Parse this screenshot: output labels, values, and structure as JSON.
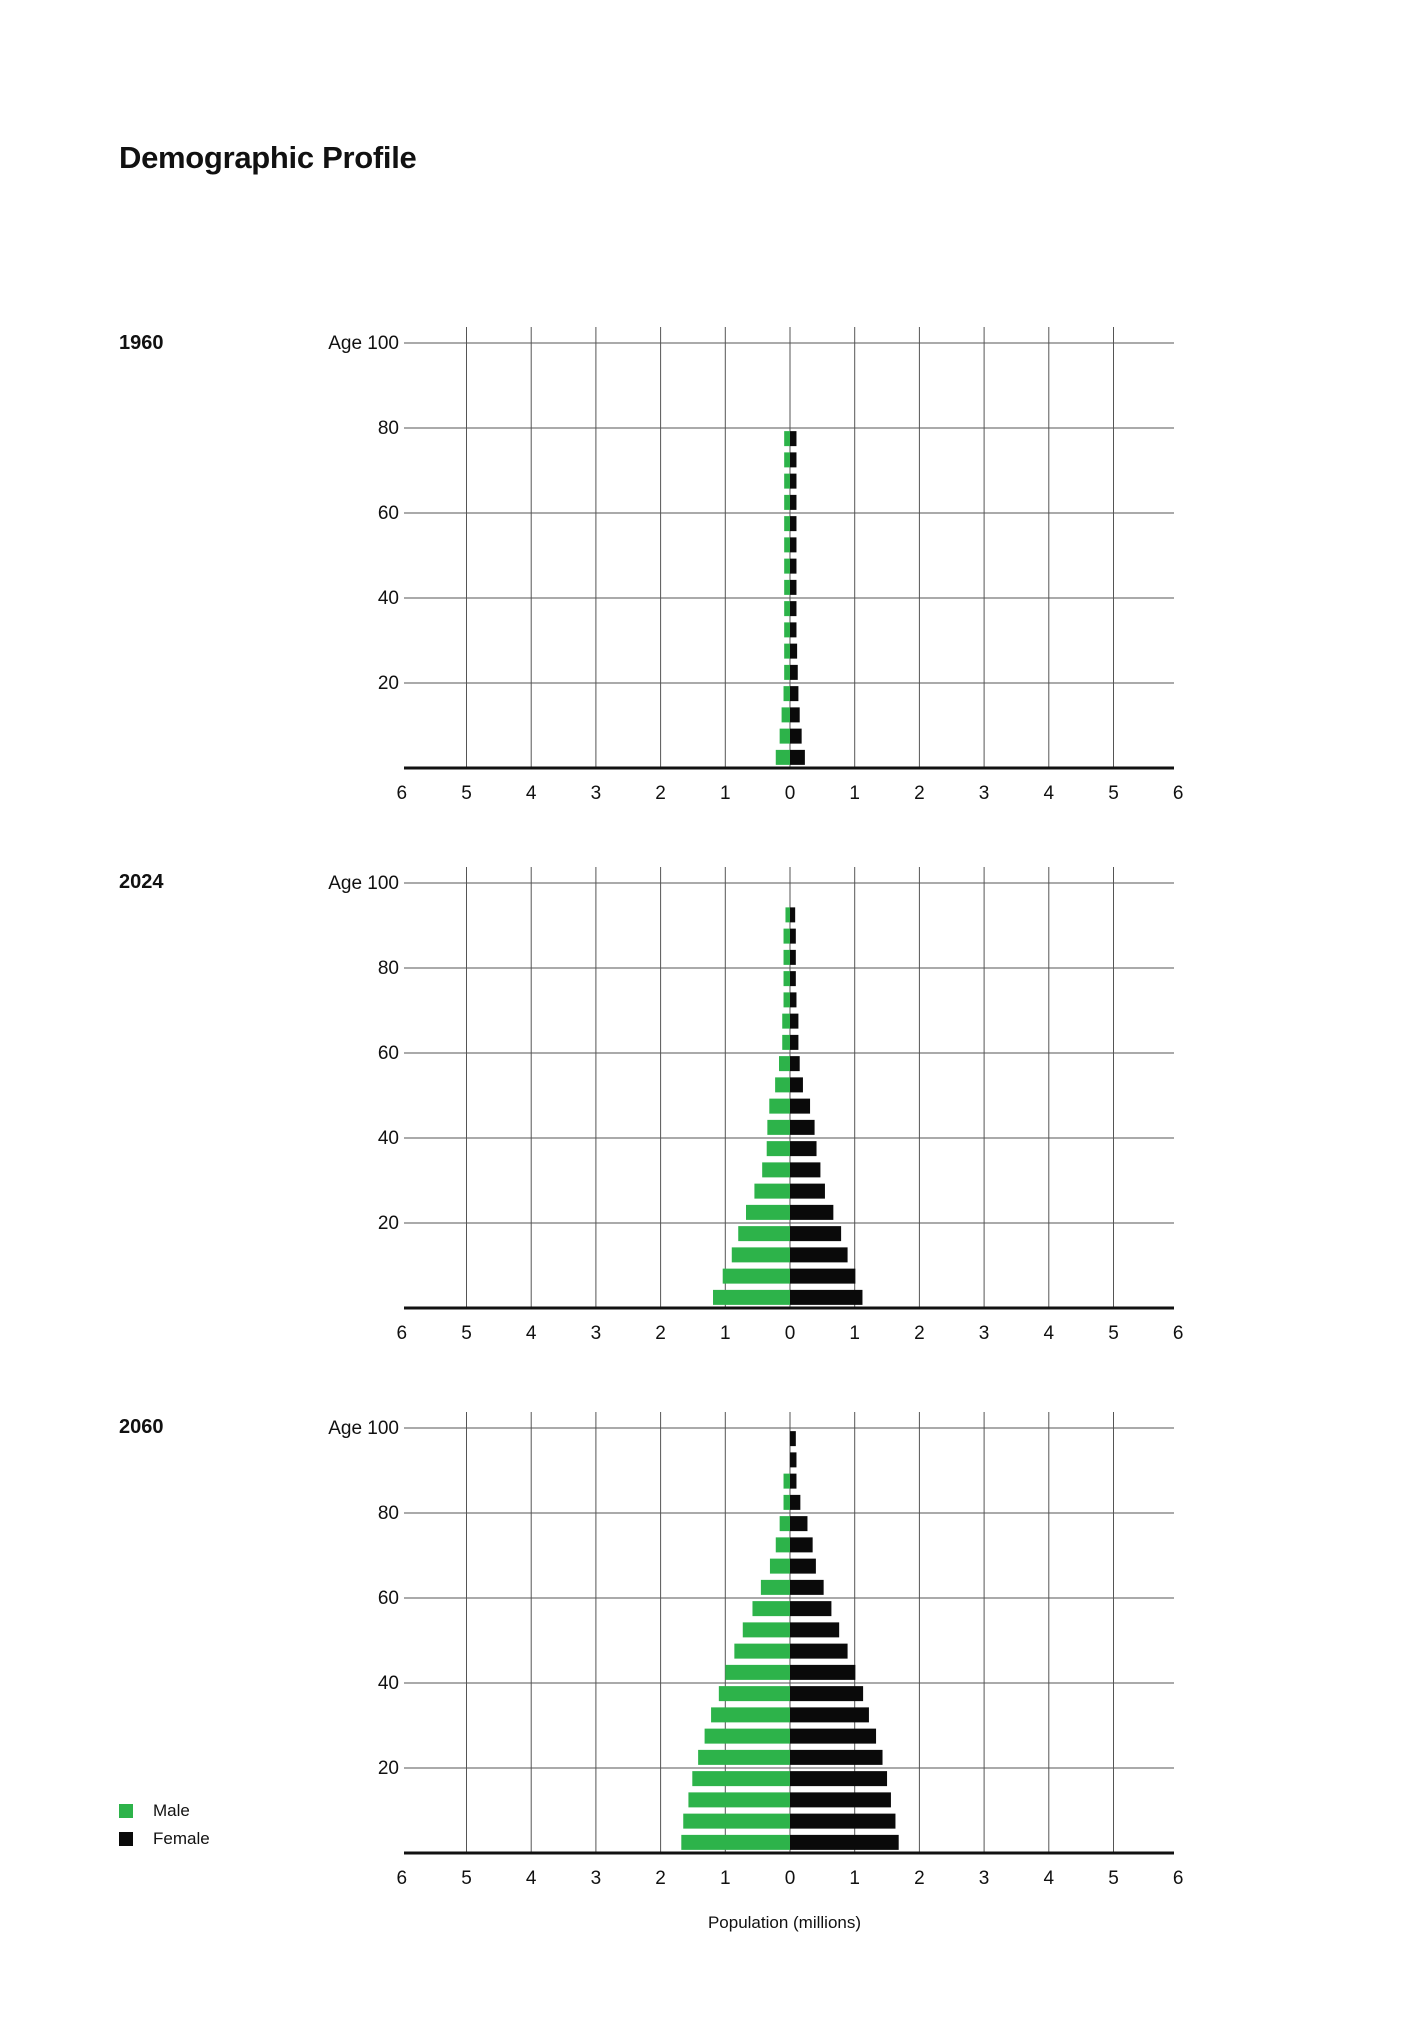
{
  "title": "Demographic Profile",
  "colors": {
    "male": "#2db34a",
    "female": "#0a0a0a",
    "grid": "#555555",
    "axis": "#111111"
  },
  "legend": {
    "male": "Male",
    "female": "Female"
  },
  "chart_data": [
    {
      "type": "bar",
      "orientation": "horizontal-pyramid",
      "year": "1960",
      "ylabel_top": "Age 100",
      "y_ticks": [
        "80",
        "60",
        "40",
        "20"
      ],
      "x_ticks": [
        "6",
        "5",
        "4",
        "3",
        "2",
        "1",
        "0",
        "1",
        "2",
        "3",
        "4",
        "5",
        "6"
      ],
      "xlim": [
        -6,
        6
      ],
      "ylim": [
        0,
        100
      ],
      "age_groups": [
        "0-4",
        "5-9",
        "10-14",
        "15-19",
        "20-24",
        "25-29",
        "30-34",
        "35-39",
        "40-44",
        "45-49",
        "50-54",
        "55-59",
        "60-64",
        "65-69",
        "70-74",
        "75-79"
      ],
      "series": [
        {
          "name": "Male",
          "values": [
            0.22,
            0.16,
            0.13,
            0.1,
            0.09,
            0.09,
            0.09,
            0.09,
            0.09,
            0.09,
            0.09,
            0.09,
            0.09,
            0.09,
            0.09,
            0.09
          ]
        },
        {
          "name": "Female",
          "values": [
            0.23,
            0.18,
            0.15,
            0.13,
            0.12,
            0.11,
            0.1,
            0.1,
            0.1,
            0.1,
            0.1,
            0.1,
            0.1,
            0.1,
            0.1,
            0.1
          ]
        }
      ]
    },
    {
      "type": "bar",
      "orientation": "horizontal-pyramid",
      "year": "2024",
      "ylabel_top": "Age 100",
      "y_ticks": [
        "80",
        "60",
        "40",
        "20"
      ],
      "x_ticks": [
        "6",
        "5",
        "4",
        "3",
        "2",
        "1",
        "0",
        "1",
        "2",
        "3",
        "4",
        "5",
        "6"
      ],
      "xlim": [
        -6,
        6
      ],
      "ylim": [
        0,
        100
      ],
      "age_groups": [
        "0-4",
        "5-9",
        "10-14",
        "15-19",
        "20-24",
        "25-29",
        "30-34",
        "35-39",
        "40-44",
        "45-49",
        "50-54",
        "55-59",
        "60-64",
        "65-69",
        "70-74",
        "75-79",
        "80-84",
        "85-89",
        "90-94"
      ],
      "series": [
        {
          "name": "Male",
          "values": [
            1.19,
            1.04,
            0.9,
            0.8,
            0.68,
            0.55,
            0.43,
            0.36,
            0.35,
            0.32,
            0.23,
            0.17,
            0.12,
            0.12,
            0.1,
            0.1,
            0.1,
            0.1,
            0.07
          ]
        },
        {
          "name": "Female",
          "values": [
            1.12,
            1.01,
            0.89,
            0.79,
            0.67,
            0.54,
            0.47,
            0.41,
            0.38,
            0.31,
            0.2,
            0.15,
            0.13,
            0.13,
            0.1,
            0.09,
            0.09,
            0.09,
            0.08
          ]
        }
      ]
    },
    {
      "type": "bar",
      "orientation": "horizontal-pyramid",
      "year": "2060",
      "ylabel_top": "Age 100",
      "y_ticks": [
        "80",
        "60",
        "40",
        "20"
      ],
      "x_ticks": [
        "6",
        "5",
        "4",
        "3",
        "2",
        "1",
        "0",
        "1",
        "2",
        "3",
        "4",
        "5",
        "6"
      ],
      "xlim": [
        -6,
        6
      ],
      "ylim": [
        0,
        100
      ],
      "age_groups": [
        "0-4",
        "5-9",
        "10-14",
        "15-19",
        "20-24",
        "25-29",
        "30-34",
        "35-39",
        "40-44",
        "45-49",
        "50-54",
        "55-59",
        "60-64",
        "65-69",
        "70-74",
        "75-79",
        "80-84",
        "85-89",
        "90-94",
        "95-99"
      ],
      "series": [
        {
          "name": "Male",
          "values": [
            1.68,
            1.65,
            1.57,
            1.51,
            1.42,
            1.32,
            1.22,
            1.1,
            1.0,
            0.86,
            0.73,
            0.58,
            0.45,
            0.31,
            0.22,
            0.16,
            0.1,
            0.1,
            0.0,
            0.0
          ]
        },
        {
          "name": "Female",
          "values": [
            1.68,
            1.63,
            1.56,
            1.5,
            1.43,
            1.33,
            1.22,
            1.13,
            1.01,
            0.89,
            0.76,
            0.64,
            0.52,
            0.4,
            0.35,
            0.27,
            0.16,
            0.1,
            0.1,
            0.09
          ]
        }
      ]
    }
  ],
  "xlabel": "Population (millions)"
}
